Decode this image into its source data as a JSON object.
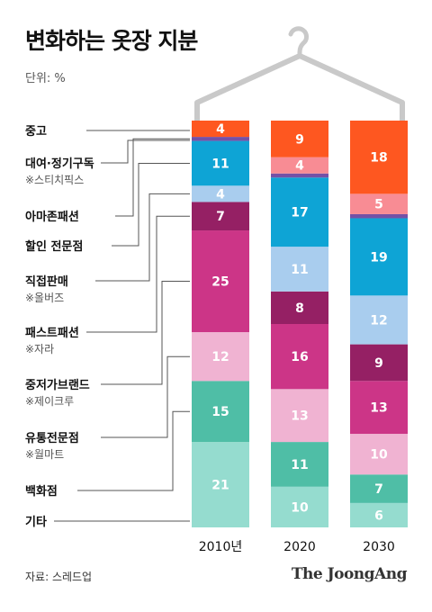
{
  "title": "변화하는 옷장 지분",
  "unit": "단위: %",
  "source": "자료: 스레드업",
  "credit": "The JoongAng",
  "chart_data": {
    "type": "bar",
    "stacked": true,
    "orientation": "vertical",
    "ylim": [
      0,
      100
    ],
    "categories": [
      "2010년",
      "2020",
      "2030"
    ],
    "series": [
      {
        "name": "기타",
        "note": "",
        "color": "#95dccf",
        "values": [
          21,
          10,
          6
        ]
      },
      {
        "name": "백화점",
        "note": "",
        "color": "#4fbea6",
        "values": [
          15,
          11,
          7
        ]
      },
      {
        "name": "유통전문점",
        "note": "※월마트",
        "color": "#f0b3d2",
        "values": [
          12,
          13,
          10
        ]
      },
      {
        "name": "중저가브랜드",
        "note": "※제이크루",
        "color": "#cc3587",
        "values": [
          25,
          16,
          13
        ]
      },
      {
        "name": "패스트패션",
        "note": "※자라",
        "color": "#952064",
        "values": [
          7,
          8,
          9
        ]
      },
      {
        "name": "직접판매",
        "note": "※올버즈",
        "color": "#a9cdee",
        "values": [
          4,
          11,
          12
        ]
      },
      {
        "name": "할인 전문점",
        "note": "",
        "color": "#0ea4d5",
        "values": [
          11,
          17,
          19
        ]
      },
      {
        "name": "아마존패션",
        "note": "",
        "color": "#7451a6",
        "values": [
          1,
          1,
          1
        ]
      },
      {
        "name": "대여·정기구독",
        "note": "※스티치픽스",
        "color": "#f88c94",
        "values": [
          0,
          4,
          5
        ]
      },
      {
        "name": "중고",
        "note": "",
        "color": "#fe5720",
        "values": [
          4,
          9,
          18
        ]
      }
    ],
    "legend_placement": "left",
    "grid": false
  },
  "legend_order": [
    {
      "name": "중고",
      "note": ""
    },
    {
      "name": "대여·정기구독",
      "note": "※스티치픽스"
    },
    {
      "name": "아마존패션",
      "note": ""
    },
    {
      "name": "할인 전문점",
      "note": ""
    },
    {
      "name": "직접판매",
      "note": "※올버즈"
    },
    {
      "name": "패스트패션",
      "note": "※자라"
    },
    {
      "name": "중저가브랜드",
      "note": "※제이크루"
    },
    {
      "name": "유통전문점",
      "note": "※월마트"
    },
    {
      "name": "백화점",
      "note": ""
    },
    {
      "name": "기타",
      "note": ""
    }
  ]
}
